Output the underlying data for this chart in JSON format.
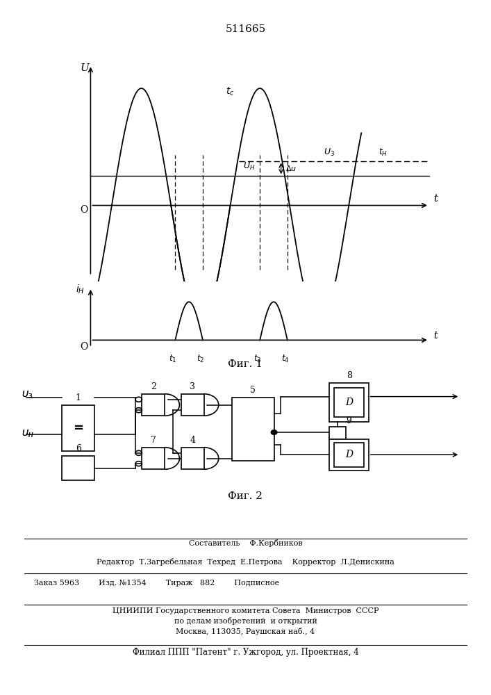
{
  "patent_number": "511665",
  "fig1_caption": "Фиг. 1",
  "fig2_caption": "Фиг. 2",
  "footer_line1": "Составитель    Ф.Кербников",
  "footer_line2": "Редактор  Т.Загребельная  Техред  Е.Петрова    Корректор  Л.Денискина",
  "footer_line3": "Заказ 5963        Изд. №1354        Тираж   882        Подписное",
  "footer_line4": "ЦНИИПИ Государственного комитета Совета  Министров  СССР",
  "footer_line5": "по делам изобретений  и открытий",
  "footer_line6": "Москва, 113035, Раушская наб., 4",
  "footer_line7": "Филиал ППП \"Патент\" г. Ужгород, ул. Проектная, 4",
  "bg_color": "#ffffff",
  "line_color": "#000000"
}
